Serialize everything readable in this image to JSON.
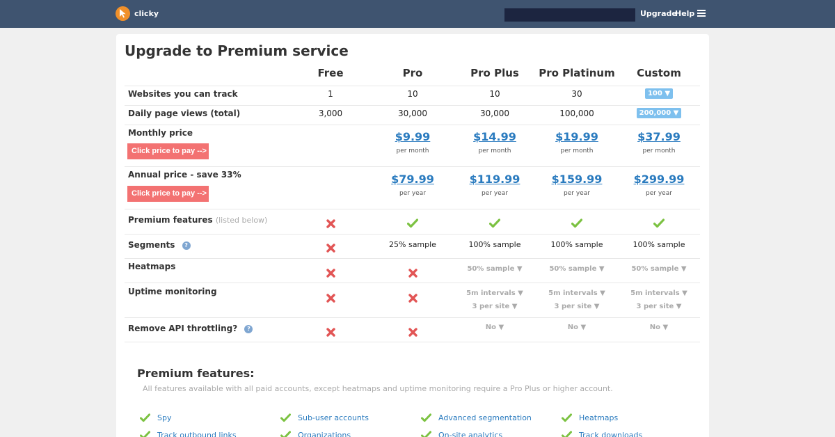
{
  "header": {
    "logo_text": "clicky",
    "upgrade_link": "Upgrade",
    "help_link": "Help"
  },
  "page": {
    "title": "Upgrade to Premium service"
  },
  "plans": [
    "Free",
    "Pro",
    "Pro Plus",
    "Pro Platinum",
    "Custom"
  ],
  "rows": {
    "websites": {
      "label": "Websites you can track",
      "values": [
        "1",
        "10",
        "10",
        "30"
      ],
      "custom": "100 ▼"
    },
    "pageviews": {
      "label": "Daily page views (total)",
      "values": [
        "3,000",
        "30,000",
        "30,000",
        "100,000"
      ],
      "custom": "200,000 ▼"
    },
    "monthly": {
      "label": "Monthly price",
      "button": "Click price to pay -->",
      "prices": [
        "$9.99",
        "$14.99",
        "$19.99",
        "$37.99"
      ],
      "period": "per month"
    },
    "annual": {
      "label": "Annual price - save 33%",
      "button": "Click price to pay -->",
      "prices": [
        "$79.99",
        "$119.99",
        "$159.99",
        "$299.99"
      ],
      "period": "per year"
    },
    "premium": {
      "label": "Premium features",
      "note": "(listed below)",
      "marks": [
        "cross",
        "check",
        "check",
        "check",
        "check"
      ]
    },
    "segments": {
      "label": "Segments",
      "help": "?",
      "free_mark": "cross",
      "values": [
        "25% sample",
        "100% sample",
        "100% sample",
        "100% sample"
      ]
    },
    "heatmaps": {
      "label": "Heatmaps",
      "marks": [
        "cross",
        "cross"
      ],
      "values": [
        "50% sample ▼",
        "50% sample ▼",
        "50% sample ▼"
      ]
    },
    "uptime": {
      "label": "Uptime monitoring",
      "marks": [
        "cross",
        "cross"
      ],
      "intervals": [
        "5m intervals ▼",
        "5m intervals ▼",
        "5m intervals ▼"
      ],
      "sites": [
        "3 per site ▼",
        "3 per site ▼",
        "3 per site ▼"
      ]
    },
    "throttling": {
      "label": "Remove API throttling?",
      "help": "?",
      "marks": [
        "cross",
        "cross"
      ],
      "values": [
        "No ▼",
        "No ▼",
        "No ▼"
      ]
    }
  },
  "features_section": {
    "title": "Premium features:",
    "description": "All features available with all paid accounts, except heatmaps and uptime monitoring require a Pro Plus or higher account.",
    "items": [
      "Spy",
      "Sub-user accounts",
      "Advanced segmentation",
      "Heatmaps",
      "Track outbound links",
      "Organizations",
      "On-site analytics",
      "Track downloads"
    ]
  },
  "colors": {
    "topbar": "#3f5470",
    "accent_orange": "#f0902a",
    "price_link": "#2a7bbf",
    "pay_button": "#f37272",
    "check": "#7cc242",
    "cross": "#e25555",
    "select_pill": "#7ec0ee"
  },
  "icons": {
    "check": "check-icon",
    "cross": "cross-icon",
    "help": "help-icon",
    "menu": "menu-icon",
    "logo": "cursor-logo-icon"
  }
}
